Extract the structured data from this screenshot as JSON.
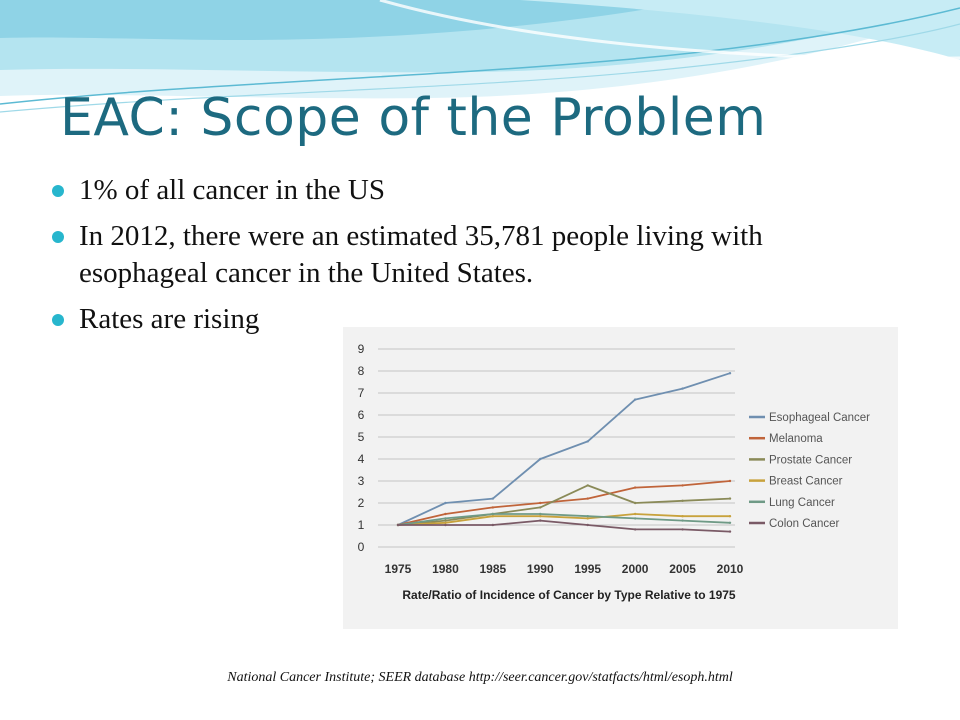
{
  "slide": {
    "title": "EAC: Scope of the Problem",
    "bullets": [
      "1% of all cancer in the US",
      "In 2012, there were an estimated 35,781 people living with esophageal cancer in the United States.",
      "Rates are rising"
    ],
    "citation": "National Cancer Institute; SEER database  http://seer.cancer.gov/statfacts/html/esoph.html",
    "colors": {
      "title": "#1d6a80",
      "bullet": "#27b6cd"
    }
  },
  "chart_data": {
    "type": "line",
    "title": "",
    "xlabel": "Rate/Ratio of Incidence of Cancer by Type Relative to 1975",
    "ylabel": "",
    "x": [
      1975,
      1980,
      1985,
      1990,
      1995,
      2000,
      2005,
      2010
    ],
    "ylim": [
      0,
      9
    ],
    "yticks": [
      0,
      1,
      2,
      3,
      4,
      5,
      6,
      7,
      8,
      9
    ],
    "grid": true,
    "legend_position": "right",
    "series": [
      {
        "name": "Esophageal Cancer",
        "color": "#6f8fb0",
        "values": [
          1.0,
          2.0,
          2.2,
          4.0,
          4.8,
          6.7,
          7.2,
          7.9
        ]
      },
      {
        "name": "Melanoma",
        "color": "#c0643a",
        "values": [
          1.0,
          1.5,
          1.8,
          2.0,
          2.2,
          2.7,
          2.8,
          3.0
        ]
      },
      {
        "name": "Prostate Cancer",
        "color": "#8a8a58",
        "values": [
          1.0,
          1.2,
          1.5,
          1.8,
          2.8,
          2.0,
          2.1,
          2.2
        ]
      },
      {
        "name": "Breast Cancer",
        "color": "#c8a23c",
        "values": [
          1.0,
          1.1,
          1.4,
          1.4,
          1.3,
          1.5,
          1.4,
          1.4
        ]
      },
      {
        "name": "Lung Cancer",
        "color": "#6f9a86",
        "values": [
          1.0,
          1.3,
          1.5,
          1.5,
          1.4,
          1.3,
          1.2,
          1.1
        ]
      },
      {
        "name": "Colon Cancer",
        "color": "#7a5a66",
        "values": [
          1.0,
          1.0,
          1.0,
          1.2,
          1.0,
          0.8,
          0.8,
          0.7
        ]
      }
    ]
  }
}
